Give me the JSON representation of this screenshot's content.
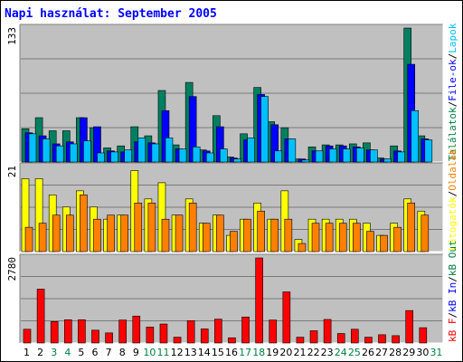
{
  "title": "Napi használat: September 2005",
  "colors": {
    "plot_bg": "#c0c0c0",
    "grid": "#7a7a7a",
    "text_dark": "#000000",
    "blue_text": "#0000ff",
    "weekend_text": "#008040"
  },
  "chart_data": [
    {
      "type": "bar",
      "panel": "top",
      "ymax_label": "133",
      "ylim": [
        0,
        133
      ],
      "side_label": [
        {
          "text": "Találatok",
          "color": "#008040"
        },
        {
          "text": "/",
          "color": "#000000"
        },
        {
          "text": "File-ok",
          "color": "#0000ff"
        },
        {
          "text": "/",
          "color": "#000000"
        },
        {
          "text": "Lapok",
          "color": "#00c0ff"
        }
      ],
      "categories": [
        "1",
        "2",
        "3",
        "4",
        "5",
        "6",
        "7",
        "8",
        "9",
        "10",
        "11",
        "12",
        "13",
        "14",
        "15",
        "16",
        "17",
        "18",
        "19",
        "20",
        "21",
        "22",
        "23",
        "24",
        "25",
        "26",
        "27",
        "28",
        "29",
        "30",
        "31"
      ],
      "series": [
        {
          "name": "Találatok",
          "color": "#008060",
          "values": [
            33,
            44,
            31,
            31,
            44,
            34,
            14,
            16,
            35,
            26,
            71,
            17,
            79,
            12,
            46,
            5,
            28,
            74,
            40,
            34,
            3,
            15,
            17,
            17,
            18,
            19,
            4,
            16,
            133,
            26,
            0
          ]
        },
        {
          "name": "File-ok",
          "color": "#0000ff",
          "values": [
            29,
            26,
            18,
            20,
            44,
            35,
            11,
            10,
            20,
            19,
            51,
            13,
            65,
            11,
            35,
            4,
            22,
            67,
            37,
            23,
            3,
            11,
            16,
            16,
            15,
            12,
            3,
            11,
            97,
            23,
            0
          ]
        },
        {
          "name": "Lapok",
          "color": "#00c0ff",
          "values": [
            28,
            23,
            16,
            18,
            21,
            9,
            10,
            12,
            24,
            18,
            24,
            13,
            15,
            9,
            13,
            3,
            24,
            65,
            11,
            23,
            2,
            11,
            13,
            13,
            14,
            12,
            3,
            10,
            51,
            22,
            0
          ]
        }
      ]
    },
    {
      "type": "bar",
      "panel": "middle",
      "ymax_label": "21",
      "ylim": [
        0,
        21
      ],
      "side_label": [
        {
          "text": "Látogatók",
          "color": "#ffff00"
        },
        {
          "text": "/",
          "color": "#000000"
        },
        {
          "text": "Oldalak",
          "color": "#ff8000"
        }
      ],
      "categories": [
        "1",
        "2",
        "3",
        "4",
        "5",
        "6",
        "7",
        "8",
        "9",
        "10",
        "11",
        "12",
        "13",
        "14",
        "15",
        "16",
        "17",
        "18",
        "19",
        "20",
        "21",
        "22",
        "23",
        "24",
        "25",
        "26",
        "27",
        "28",
        "29",
        "30",
        "31"
      ],
      "series": [
        {
          "name": "Látogatók",
          "color": "#ffff00",
          "values": [
            18,
            18,
            14,
            11,
            15,
            11,
            8,
            9,
            20,
            13,
            17,
            9,
            13,
            7,
            9,
            4,
            8,
            12,
            8,
            15,
            3,
            8,
            8,
            8,
            8,
            7,
            4,
            7,
            13,
            10,
            0
          ]
        },
        {
          "name": "Oldalak",
          "color": "#ff8000",
          "values": [
            6,
            7,
            9,
            9,
            14,
            8,
            9,
            9,
            12,
            12,
            8,
            9,
            12,
            7,
            9,
            5,
            8,
            10,
            8,
            8,
            2,
            7,
            7,
            7,
            7,
            5,
            4,
            6,
            12,
            9,
            0
          ]
        }
      ]
    },
    {
      "type": "bar",
      "panel": "bottom",
      "ymax_label": "2780",
      "ylim": [
        0,
        2780
      ],
      "side_label": [
        {
          "text": "kB F",
          "color": "#ff0000"
        },
        {
          "text": "/",
          "color": "#000000"
        },
        {
          "text": "kB In",
          "color": "#0000ff"
        },
        {
          "text": "/",
          "color": "#000000"
        },
        {
          "text": "kB Out",
          "color": "#008040"
        }
      ],
      "categories": [
        "1",
        "2",
        "3",
        "4",
        "5",
        "6",
        "7",
        "8",
        "9",
        "10",
        "11",
        "12",
        "13",
        "14",
        "15",
        "16",
        "17",
        "18",
        "19",
        "20",
        "21",
        "22",
        "23",
        "24",
        "25",
        "26",
        "27",
        "28",
        "29",
        "30",
        "31"
      ],
      "series": [
        {
          "name": "kB F",
          "color": "#ff0000",
          "values": [
            450,
            1760,
            700,
            760,
            760,
            420,
            330,
            750,
            880,
            520,
            620,
            190,
            730,
            460,
            780,
            170,
            850,
            2780,
            750,
            1670,
            190,
            400,
            770,
            310,
            450,
            190,
            270,
            240,
            1060,
            500,
            0
          ]
        }
      ]
    }
  ],
  "x_axis": {
    "labels": [
      {
        "text": "1",
        "weekend": false
      },
      {
        "text": "2",
        "weekend": false
      },
      {
        "text": "3",
        "weekend": true
      },
      {
        "text": "4",
        "weekend": true
      },
      {
        "text": "5",
        "weekend": false
      },
      {
        "text": "6",
        "weekend": false
      },
      {
        "text": "7",
        "weekend": false
      },
      {
        "text": "8",
        "weekend": false
      },
      {
        "text": "9",
        "weekend": false
      },
      {
        "text": "10",
        "weekend": true
      },
      {
        "text": "11",
        "weekend": true
      },
      {
        "text": "12",
        "weekend": false
      },
      {
        "text": "13",
        "weekend": false
      },
      {
        "text": "14",
        "weekend": false
      },
      {
        "text": "15",
        "weekend": false
      },
      {
        "text": "16",
        "weekend": false
      },
      {
        "text": "17",
        "weekend": true
      },
      {
        "text": "18",
        "weekend": true
      },
      {
        "text": "19",
        "weekend": false
      },
      {
        "text": "20",
        "weekend": false
      },
      {
        "text": "21",
        "weekend": false
      },
      {
        "text": "22",
        "weekend": false
      },
      {
        "text": "23",
        "weekend": false
      },
      {
        "text": "24",
        "weekend": true
      },
      {
        "text": "25",
        "weekend": true
      },
      {
        "text": "26",
        "weekend": false
      },
      {
        "text": "27",
        "weekend": false
      },
      {
        "text": "28",
        "weekend": false
      },
      {
        "text": "29",
        "weekend": false
      },
      {
        "text": "30",
        "weekend": false
      },
      {
        "text": "31",
        "weekend": true
      }
    ]
  }
}
